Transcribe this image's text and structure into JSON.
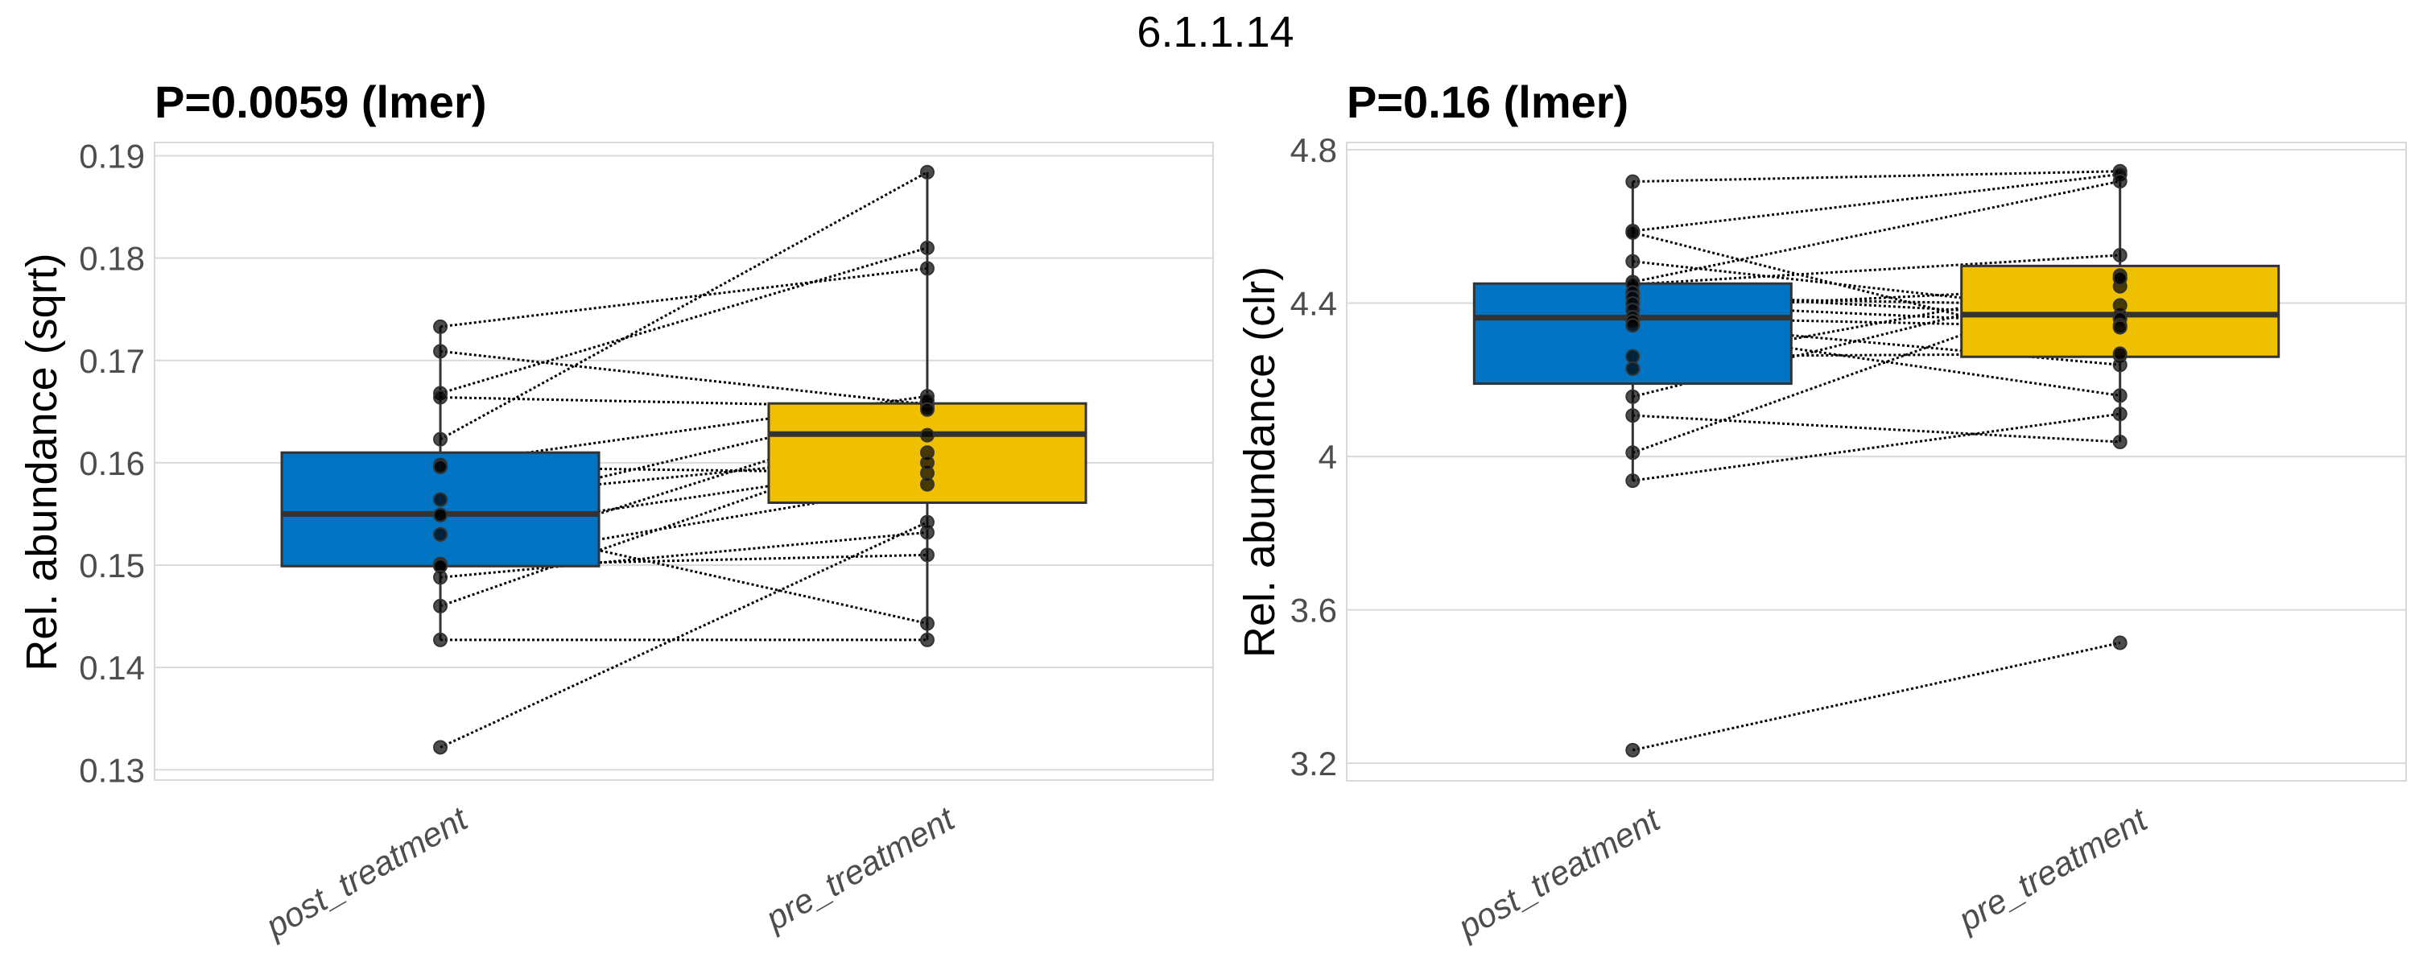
{
  "figure_title": "6.1.1.14",
  "colors": {
    "post_treatment": "#0073C2",
    "pre_treatment": "#EFC000",
    "gridline": "#d9d9d9",
    "box_outline": "#333333",
    "point": "#000000",
    "tick_text": "#4d4d4d"
  },
  "chart_data": [
    {
      "type": "box",
      "title": "P=0.0059 (lmer)",
      "xlabel": "",
      "ylabel": "Rel. abundance (sqrt)",
      "categories": [
        "post_treatment",
        "pre_treatment"
      ],
      "ylim": [
        0.129,
        0.1913
      ],
      "yticks": [
        0.13,
        0.14,
        0.15,
        0.16,
        0.17,
        0.18,
        0.19
      ],
      "ytick_labels": [
        "0.13",
        "0.14",
        "0.15",
        "0.16",
        "0.17",
        "0.18",
        "0.19"
      ],
      "grid": true,
      "boxes": [
        {
          "category": "post_treatment",
          "q1": 0.1499,
          "median": 0.155,
          "q3": 0.161,
          "whisker_low": 0.1427,
          "whisker_high": 0.1733,
          "outliers": [
            0.1322
          ]
        },
        {
          "category": "pre_treatment",
          "q1": 0.1561,
          "median": 0.1628,
          "q3": 0.1658,
          "whisker_low": 0.1427,
          "whisker_high": 0.1884,
          "outliers": []
        }
      ],
      "pairs": [
        [
          0.1733,
          0.179
        ],
        [
          0.1709,
          0.1657
        ],
        [
          0.1668,
          0.181
        ],
        [
          0.1664,
          0.1654
        ],
        [
          0.1623,
          0.1884
        ],
        [
          0.1598,
          0.1665
        ],
        [
          0.1596,
          0.159
        ],
        [
          0.1564,
          0.161
        ],
        [
          0.1549,
          0.1661
        ],
        [
          0.1549,
          0.1443
        ],
        [
          0.153,
          0.16
        ],
        [
          0.1501,
          0.1652
        ],
        [
          0.1499,
          0.1579
        ],
        [
          0.1499,
          0.151
        ],
        [
          0.1488,
          0.1532
        ],
        [
          0.146,
          0.1627
        ],
        [
          0.1427,
          0.1427
        ],
        [
          0.1322,
          0.1542
        ]
      ]
    },
    {
      "type": "box",
      "title": "P=0.16 (lmer)",
      "xlabel": "",
      "ylabel": "Rel. abundance (clr)",
      "categories": [
        "post_treatment",
        "pre_treatment"
      ],
      "ylim": [
        3.154,
        4.819
      ],
      "yticks": [
        3.2,
        3.6,
        4.0,
        4.4,
        4.8
      ],
      "ytick_labels": [
        "3.2",
        "3.6",
        "4",
        "4.4",
        "4.8"
      ],
      "grid": true,
      "boxes": [
        {
          "category": "post_treatment",
          "q1": 4.19,
          "median": 4.362,
          "q3": 4.451,
          "whisker_low": 3.937,
          "whisker_high": 4.717,
          "outliers": [
            3.234
          ]
        },
        {
          "category": "pre_treatment",
          "q1": 4.26,
          "median": 4.37,
          "q3": 4.497,
          "whisker_low": 4.038,
          "whisker_high": 4.744,
          "outliers": [
            3.514
          ]
        }
      ],
      "pairs": [
        [
          4.717,
          4.744
        ],
        [
          4.588,
          4.736
        ],
        [
          4.584,
          4.263
        ],
        [
          4.509,
          4.368
        ],
        [
          4.455,
          4.718
        ],
        [
          4.449,
          4.525
        ],
        [
          4.428,
          4.359
        ],
        [
          4.415,
          4.394
        ],
        [
          4.399,
          4.342
        ],
        [
          4.382,
          4.444
        ],
        [
          4.363,
          4.337
        ],
        [
          4.353,
          4.239
        ],
        [
          4.342,
          4.159
        ],
        [
          4.261,
          4.268
        ],
        [
          4.229,
          4.465
        ],
        [
          4.156,
          4.472
        ],
        [
          4.107,
          4.038
        ],
        [
          4.01,
          4.465
        ],
        [
          3.937,
          4.111
        ],
        [
          3.234,
          3.514
        ]
      ]
    }
  ]
}
